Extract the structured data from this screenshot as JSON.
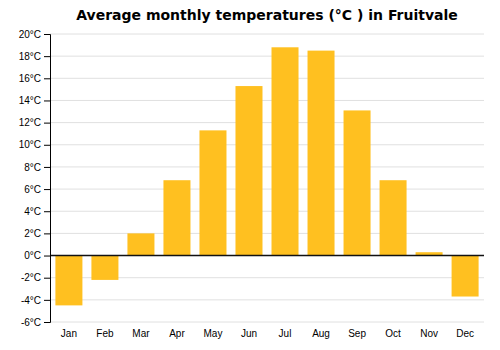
{
  "chart_data": {
    "type": "bar",
    "title": "Average monthly temperatures (°C ) in Fruitvale",
    "categories": [
      "Jan",
      "Feb",
      "Mar",
      "Apr",
      "May",
      "Jun",
      "Jul",
      "Aug",
      "Sep",
      "Oct",
      "Nov",
      "Dec"
    ],
    "values": [
      -4.5,
      -2.2,
      2.0,
      6.8,
      11.3,
      15.3,
      18.8,
      18.5,
      13.1,
      6.8,
      0.3,
      -3.7
    ],
    "color": "#FFC020",
    "ylim": [
      -6,
      20
    ],
    "yticks": [
      {
        "value": -6,
        "label": "-6°C"
      },
      {
        "value": -4,
        "label": "-4°C"
      },
      {
        "value": -2,
        "label": "-2°C"
      },
      {
        "value": 0,
        "label": "0°C"
      },
      {
        "value": 2,
        "label": "2°C"
      },
      {
        "value": 4,
        "label": "4°C"
      },
      {
        "value": 6,
        "label": "6°C"
      },
      {
        "value": 8,
        "label": "8°C"
      },
      {
        "value": 10,
        "label": "10°C"
      },
      {
        "value": 12,
        "label": "12°C"
      },
      {
        "value": 14,
        "label": "14°C"
      },
      {
        "value": 16,
        "label": "16°C"
      },
      {
        "value": 18,
        "label": "18°C"
      },
      {
        "value": 20,
        "label": "20°C"
      }
    ],
    "grid": true
  }
}
